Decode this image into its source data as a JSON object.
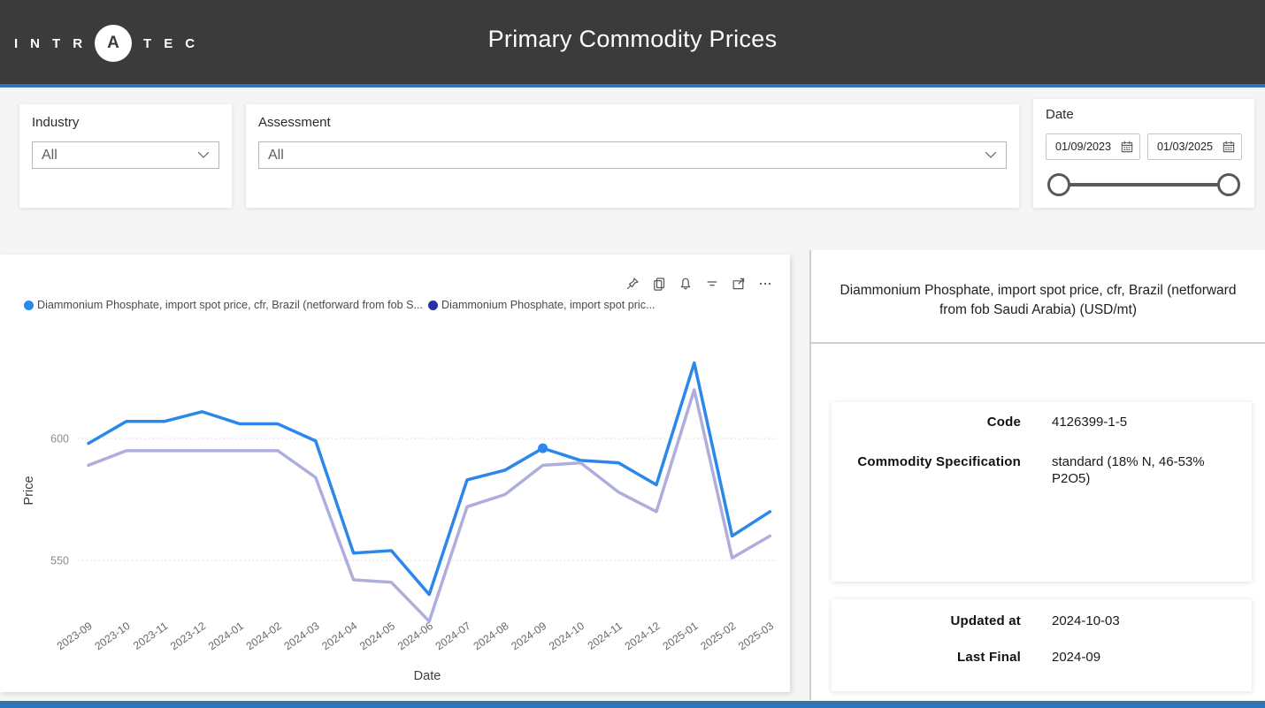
{
  "header": {
    "logo_letters": [
      "I",
      "N",
      "T",
      "R",
      "A",
      "T",
      "E",
      "C"
    ],
    "title": "Primary Commodity Prices"
  },
  "filters": {
    "industry": {
      "label": "Industry",
      "value": "All"
    },
    "assessment": {
      "label": "Assessment",
      "value": "All"
    },
    "date": {
      "label": "Date",
      "start": "01/09/2023",
      "end": "01/03/2025"
    }
  },
  "chart": {
    "toolbar_icons": [
      "pin-icon",
      "copy-icon",
      "alert-icon",
      "filter-icon",
      "focus-mode-icon",
      "more-options-icon"
    ],
    "legend": [
      {
        "label": "Diammonium Phosphate, import spot price, cfr, Brazil (netforward from fob S...",
        "dot_color": "#2b87e9"
      },
      {
        "label": "Diammonium Phosphate, import spot pric...",
        "dot_color": "#2533a3"
      }
    ]
  },
  "chart_data": {
    "type": "line",
    "title": "",
    "xlabel": "Date",
    "ylabel": "Price",
    "x": [
      "2023-09",
      "2023-10",
      "2023-11",
      "2023-12",
      "2024-01",
      "2024-02",
      "2024-03",
      "2024-04",
      "2024-05",
      "2024-06",
      "2024-07",
      "2024-08",
      "2024-09",
      "2024-10",
      "2024-11",
      "2024-12",
      "2025-01",
      "2025-02",
      "2025-03"
    ],
    "series": [
      {
        "name": "Diammonium Phosphate, import spot price, cfr, Brazil (netforward from fob S...",
        "color": "#2b87e9",
        "marker_index": 12,
        "values": [
          598,
          607,
          607,
          611,
          606,
          606,
          599,
          553,
          554,
          536,
          583,
          587,
          596,
          591,
          590,
          581,
          631,
          560,
          570
        ]
      },
      {
        "name": "Diammonium Phosphate, import spot pric...",
        "color": "#aeaedd",
        "legend_color": "#2533a3",
        "marker_index": null,
        "values": [
          589,
          595,
          595,
          595,
          595,
          595,
          584,
          542,
          541,
          525,
          572,
          577,
          589,
          590,
          578,
          570,
          620,
          551,
          560
        ]
      }
    ],
    "yticks": [
      600,
      550
    ],
    "ylim": [
      513,
      645
    ],
    "grid": "dotted-horizontal",
    "legend_position": "top"
  },
  "details": {
    "title": "Diammonium Phosphate, import spot price, cfr, Brazil (netforward from fob Saudi Arabia) (USD/mt)",
    "fields": [
      {
        "label": "Code",
        "value": "4126399-1-5"
      },
      {
        "label": "Commodity Specification",
        "value": "standard (18% N, 46-53% P2O5)"
      }
    ],
    "meta": [
      {
        "label": "Updated at",
        "value": "2024-10-03"
      },
      {
        "label": "Last Final",
        "value": "2024-09"
      }
    ]
  }
}
